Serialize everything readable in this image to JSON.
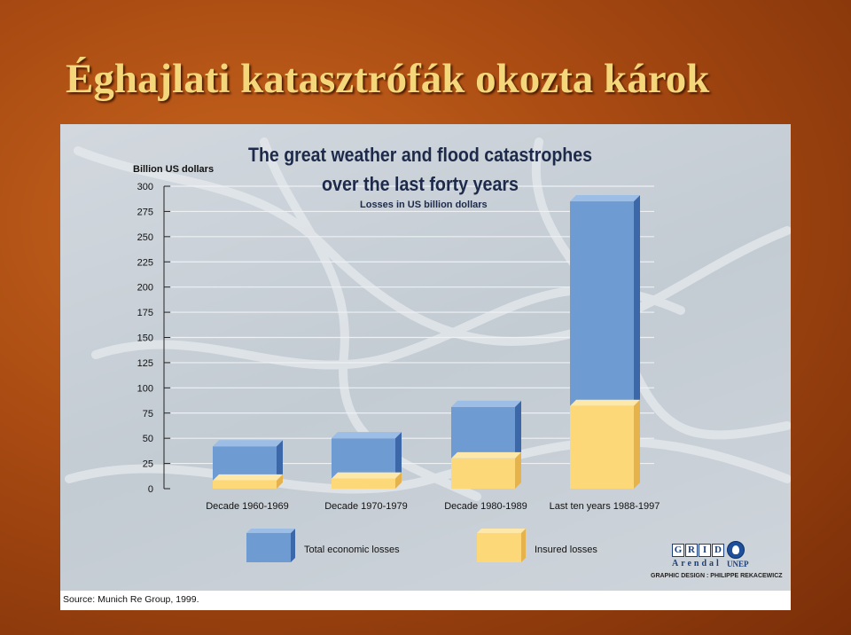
{
  "slide": {
    "title": "Éghajlati katasztrófák okozta károk",
    "source": "Source: Munich Re Group, 1999.",
    "credit": "GRAPHIC DESIGN : PHILIPPE REKACEWICZ",
    "logo_grid_letters": [
      "G",
      "R",
      "I",
      "D"
    ],
    "logo_arendal": "Arendal",
    "logo_unep": "UNEP"
  },
  "chart_data": {
    "type": "bar",
    "title": "The great weather and flood catastrophes",
    "title_line2": "over the last forty years",
    "subtitle": "Losses in US billion dollars",
    "ylabel": "Billion US dollars",
    "ylim": [
      0,
      300
    ],
    "yticks": [
      0,
      25,
      50,
      75,
      100,
      125,
      150,
      175,
      200,
      225,
      250,
      275,
      300
    ],
    "categories": [
      "Decade 1960-1969",
      "Decade 1970-1979",
      "Decade 1980-1989",
      "Last ten years 1988-1997"
    ],
    "series": [
      {
        "name": "Total economic losses",
        "values": [
          42,
          50,
          81,
          285
        ]
      },
      {
        "name": "Insured losses",
        "values": [
          8,
          10,
          30,
          82
        ]
      }
    ],
    "colors": {
      "total_front": "#6f9bd3",
      "total_side": "#3c67a8",
      "total_top": "#9cbde6",
      "insured_front": "#fcd878",
      "insured_side": "#e6b24c",
      "insured_top": "#fde7a9"
    },
    "grid": true,
    "legend": "bottom"
  }
}
